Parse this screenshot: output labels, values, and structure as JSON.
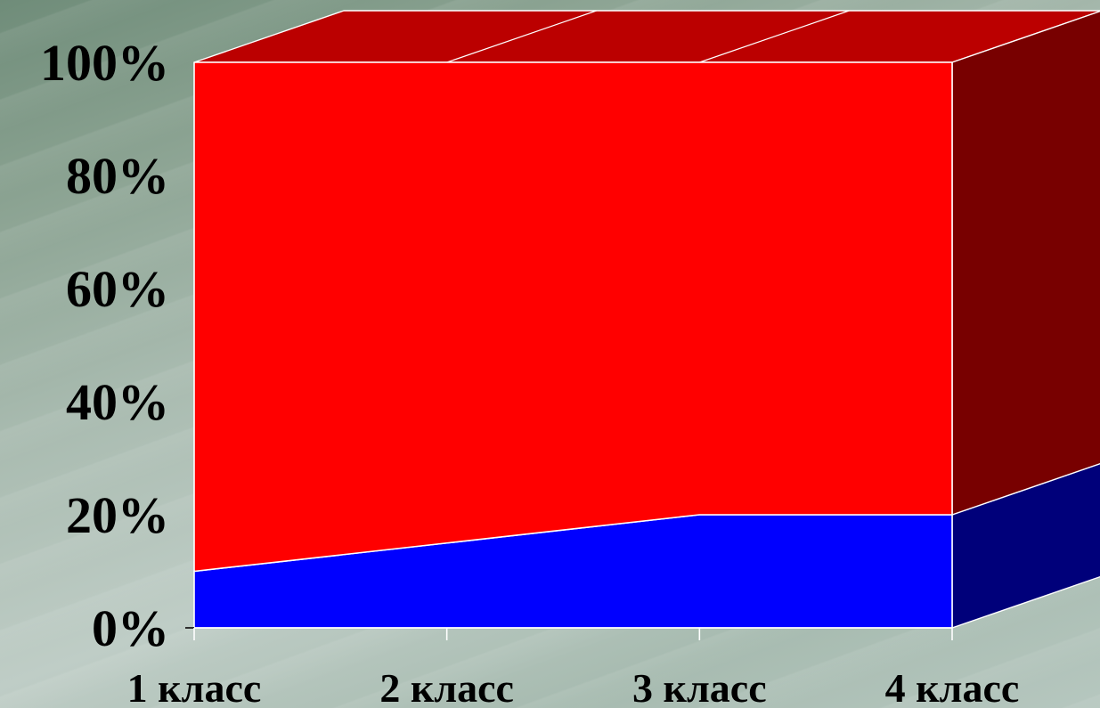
{
  "chart_data": {
    "type": "area",
    "stacked_percent": true,
    "categories": [
      "1 класс",
      "2 класс",
      "3 класс",
      "4 класс"
    ],
    "series": [
      {
        "values": [
          10,
          15,
          20,
          20
        ],
        "color": "#0000ff",
        "side_color": "#00007a"
      },
      {
        "values": [
          90,
          85,
          80,
          80
        ],
        "color": "#ff0000",
        "side_color": "#780000",
        "top_color": "#bb0000"
      }
    ],
    "y_ticks": [
      "0%",
      "20%",
      "40%",
      "60%",
      "80%",
      "100%"
    ],
    "ylim": [
      0,
      100
    ],
    "grid": false,
    "legend": "none"
  }
}
